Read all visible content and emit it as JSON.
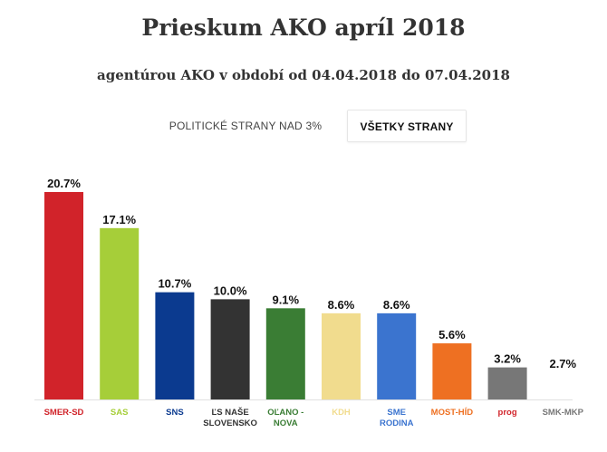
{
  "title": "Prieskum AKO apríl 2018",
  "subtitle": "agentúrou AKO v období od 04.04.2018 do 07.04.2018",
  "tabs": {
    "inactive_label": "POLITICKÉ STRANY NAD 3%",
    "active_label": "VŠETKY STRANY"
  },
  "chart_data": {
    "type": "bar",
    "title": "Prieskum AKO apríl 2018",
    "xlabel": "",
    "ylabel": "",
    "ylim": [
      0,
      20.7
    ],
    "grid": false,
    "legend": "none",
    "categories": [
      [
        "SMER-SD"
      ],
      [
        "SAS"
      ],
      [
        "SNS"
      ],
      [
        "ĽS NAŠE",
        "SLOVENSKO"
      ],
      [
        "OĽANO -",
        "NOVA"
      ],
      [
        "KDH"
      ],
      [
        "SME",
        "RODINA"
      ],
      [
        "MOST-HÍD"
      ],
      [
        "prog"
      ],
      [
        "SMK-MKP"
      ]
    ],
    "values": [
      20.7,
      17.1,
      10.7,
      10.0,
      9.1,
      8.6,
      8.6,
      5.6,
      3.2,
      2.7
    ],
    "value_labels": [
      "20.7%",
      "17.1%",
      "10.7%",
      "10.0%",
      "9.1%",
      "8.6%",
      "8.6%",
      "5.6%",
      "3.2%",
      "2.7%"
    ],
    "colors": [
      "#d1232a",
      "#a6ce39",
      "#0b3a8f",
      "#333333",
      "#3a7d34",
      "#f1dc8e",
      "#3b74cf",
      "#ee7022",
      "#777777",
      "#ffffff"
    ],
    "label_colors": [
      "#d1232a",
      "#a6ce39",
      "#0b3a8f",
      "#333333",
      "#3a7d34",
      "#f1dc8e",
      "#3b74cf",
      "#ee7022",
      "#d1232a",
      "#777777"
    ]
  }
}
